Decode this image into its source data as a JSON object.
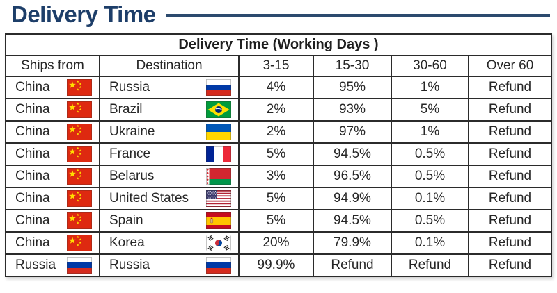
{
  "page": {
    "title": "Delivery Time",
    "accent_color": "#1d3e69"
  },
  "table": {
    "title": "Delivery Time (Working Days )",
    "columns": [
      "Ships from",
      "Destination",
      "3-15",
      "15-30",
      "30-60",
      "Over 60"
    ],
    "rows": [
      {
        "from": {
          "name": "China",
          "flag": "cn"
        },
        "dest": {
          "name": "Russia",
          "flag": "ru"
        },
        "values": [
          "4%",
          "95%",
          "1%",
          "Refund"
        ]
      },
      {
        "from": {
          "name": "China",
          "flag": "cn"
        },
        "dest": {
          "name": "Brazil",
          "flag": "br"
        },
        "values": [
          "2%",
          "93%",
          "5%",
          "Refund"
        ]
      },
      {
        "from": {
          "name": "China",
          "flag": "cn"
        },
        "dest": {
          "name": "Ukraine",
          "flag": "ua"
        },
        "values": [
          "2%",
          "97%",
          "1%",
          "Refund"
        ]
      },
      {
        "from": {
          "name": "China",
          "flag": "cn"
        },
        "dest": {
          "name": "France",
          "flag": "fr"
        },
        "values": [
          "5%",
          "94.5%",
          "0.5%",
          "Refund"
        ]
      },
      {
        "from": {
          "name": "China",
          "flag": "cn"
        },
        "dest": {
          "name": "Belarus",
          "flag": "by"
        },
        "values": [
          "3%",
          "96.5%",
          "0.5%",
          "Refund"
        ]
      },
      {
        "from": {
          "name": "China",
          "flag": "cn"
        },
        "dest": {
          "name": "United States",
          "flag": "us"
        },
        "values": [
          "5%",
          "94.9%",
          "0.1%",
          "Refund"
        ]
      },
      {
        "from": {
          "name": "China",
          "flag": "cn"
        },
        "dest": {
          "name": "Spain",
          "flag": "es"
        },
        "values": [
          "5%",
          "94.5%",
          "0.5%",
          "Refund"
        ]
      },
      {
        "from": {
          "name": "China",
          "flag": "cn"
        },
        "dest": {
          "name": "Korea",
          "flag": "kr"
        },
        "values": [
          "20%",
          "79.9%",
          "0.1%",
          "Refund"
        ]
      },
      {
        "from": {
          "name": "Russia",
          "flag": "ru"
        },
        "dest": {
          "name": "Russia",
          "flag": "ru"
        },
        "values": [
          "99.9%",
          "Refund",
          "Refund",
          "Refund"
        ]
      }
    ]
  }
}
